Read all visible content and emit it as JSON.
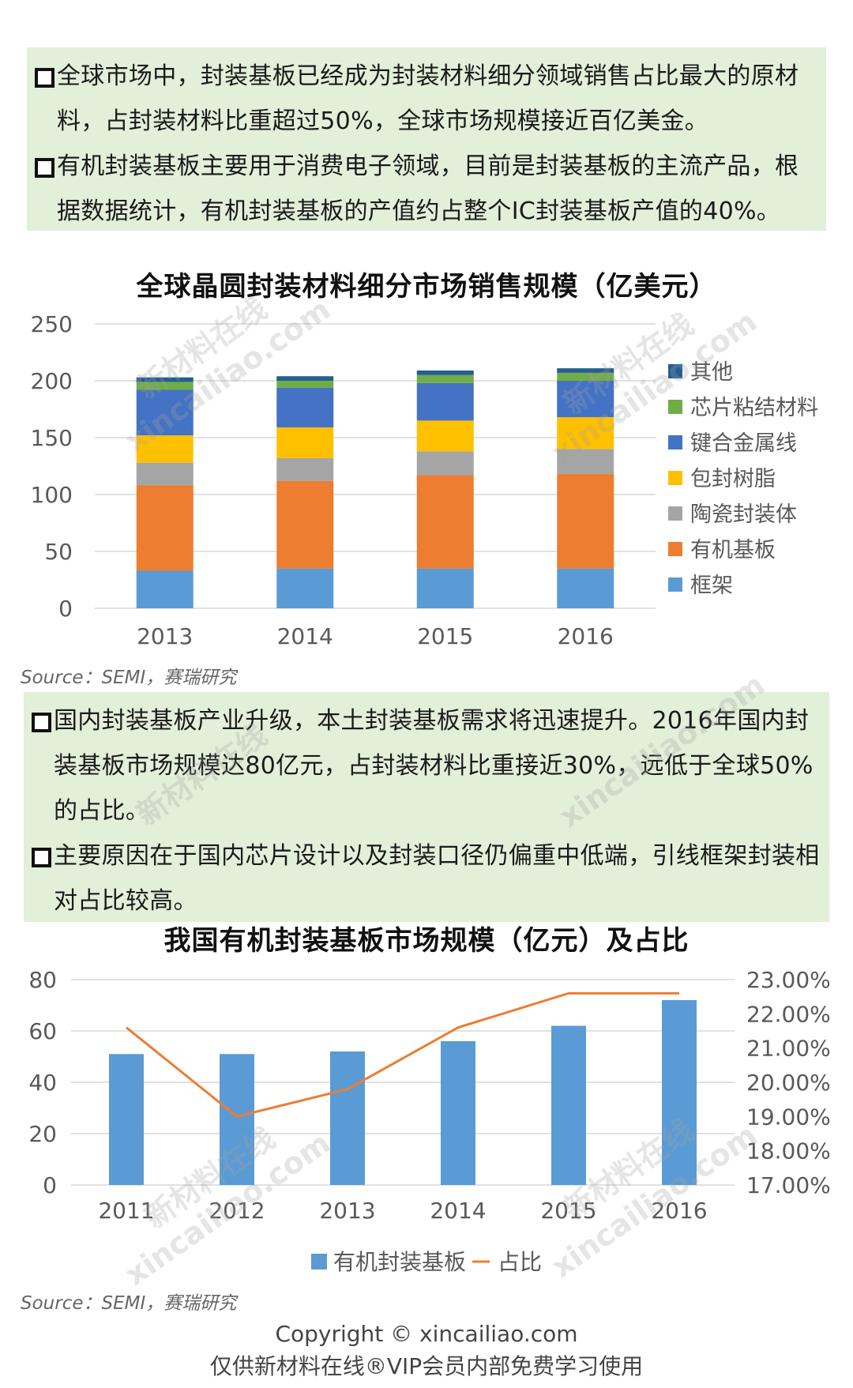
{
  "box1": {
    "bullets": [
      "全球市场中，封装基板已经成为封装材料细分领域销售占比最大的原材料，占封装材料比重超过50%，全球市场规模接近百亿美金。",
      "有机封装基板主要用于消费电子领域，目前是封装基板的主流产品，根据数据统计，有机封装基板的产值约占整个IC封装基板产值的40%。"
    ]
  },
  "box2": {
    "bullets": [
      "国内封装基板产业升级，本土封装基板需求将迅速提升。2016年国内封装基板市场规模达80亿元，占封装材料比重接近30%，远低于全球50%的占比。",
      "主要原因在于国内芯片设计以及封装口径仍偏重中低端，引线框架封装相对占比较高。"
    ]
  },
  "chart_data": [
    {
      "type": "bar",
      "stacked": true,
      "title": "全球晶圆封装材料细分市场销售规模（亿美元）",
      "categories": [
        "2013",
        "2014",
        "2015",
        "2016"
      ],
      "ylim": [
        0,
        250
      ],
      "yticks": [
        0,
        50,
        100,
        150,
        200,
        250
      ],
      "grid": true,
      "legend_position": "right",
      "series": [
        {
          "name": "框架",
          "color": "#5b9bd5",
          "values": [
            33,
            35,
            35,
            35
          ]
        },
        {
          "name": "有机基板",
          "color": "#ed7d31",
          "values": [
            75,
            77,
            82,
            83
          ]
        },
        {
          "name": "陶瓷封装体",
          "color": "#a5a5a5",
          "values": [
            20,
            20,
            21,
            22
          ]
        },
        {
          "name": "包封树脂",
          "color": "#ffc000",
          "values": [
            24,
            27,
            27,
            28
          ]
        },
        {
          "name": "键合金属线",
          "color": "#4472c4",
          "values": [
            40,
            35,
            33,
            32
          ]
        },
        {
          "name": "芯片粘结材料",
          "color": "#70ad47",
          "values": [
            7,
            6,
            7,
            7
          ]
        },
        {
          "name": "其他",
          "color": "#255e91",
          "values": [
            4,
            4,
            4,
            4
          ]
        }
      ],
      "source": "Source：SEMI，赛瑞研究"
    },
    {
      "type": "bar",
      "title": "我国有机封装基板市场规模（亿元）及占比",
      "categories": [
        "2011",
        "2012",
        "2013",
        "2014",
        "2015",
        "2016"
      ],
      "ylim": [
        0,
        80
      ],
      "yticks": [
        0,
        20,
        40,
        60,
        80
      ],
      "y2lim": [
        17,
        23
      ],
      "y2ticks": [
        "17.00%",
        "18.00%",
        "19.00%",
        "20.00%",
        "21.00%",
        "22.00%",
        "23.00%"
      ],
      "grid": true,
      "legend_position": "bottom",
      "series": [
        {
          "name": "有机封装基板",
          "type": "bar",
          "color": "#5b9bd5",
          "values": [
            51,
            51,
            52,
            56,
            62,
            72
          ]
        },
        {
          "name": "占比",
          "type": "line",
          "axis": "right",
          "color": "#ed7d31",
          "values": [
            21.6,
            19.0,
            19.8,
            21.6,
            22.6,
            22.6
          ]
        }
      ],
      "source": "Source：SEMI，赛瑞研究"
    }
  ],
  "footer": {
    "line1": "Copyright © xincailiao.com",
    "line2": "仅供新材料在线®VIP会员内部免费学习使用"
  },
  "watermarks": {
    "text1": "新材料在线",
    "text2": "xincailiao.com"
  }
}
